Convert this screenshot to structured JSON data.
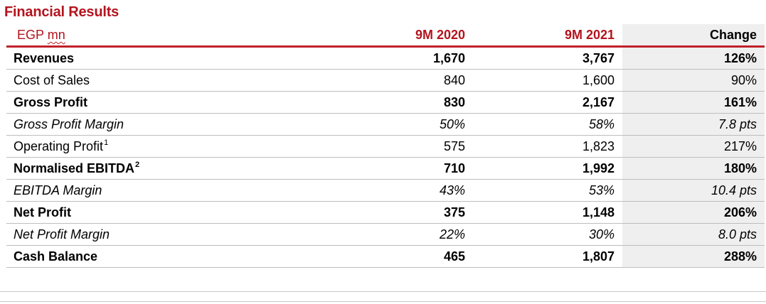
{
  "title": "Financial Results",
  "header": {
    "unit_prefix": "EGP ",
    "unit_suffix": "mn",
    "col_2020": "9M 2020",
    "col_2021": "9M 2021",
    "col_change": "Change"
  },
  "colors": {
    "accent_red": "#b3141e",
    "change_column_bg": "#efefef",
    "row_divider": "#bdbdbd"
  },
  "rows": [
    {
      "label": "Revenues",
      "sup": "",
      "v2020": "1,670",
      "v2021": "3,767",
      "change": "126%",
      "style": "bold"
    },
    {
      "label": "Cost of Sales",
      "sup": "",
      "v2020": "840",
      "v2021": "1,600",
      "change": "90%",
      "style": "normal"
    },
    {
      "label": "Gross Profit",
      "sup": "",
      "v2020": "830",
      "v2021": "2,167",
      "change": "161%",
      "style": "bold"
    },
    {
      "label": "Gross Profit Margin",
      "sup": "",
      "v2020": "50%",
      "v2021": "58%",
      "change": "7.8 pts",
      "style": "italic"
    },
    {
      "label": "Operating Profit",
      "sup": "1",
      "v2020": "575",
      "v2021": "1,823",
      "change": "217%",
      "style": "normal"
    },
    {
      "label": "Normalised EBITDA",
      "sup": "2",
      "v2020": "710",
      "v2021": "1,992",
      "change": "180%",
      "style": "bold"
    },
    {
      "label": "EBITDA Margin",
      "sup": "",
      "v2020": "43%",
      "v2021": "53%",
      "change": "10.4 pts",
      "style": "italic"
    },
    {
      "label": "Net Profit",
      "sup": "",
      "v2020": "375",
      "v2021": "1,148",
      "change": "206%",
      "style": "bold"
    },
    {
      "label": "Net Profit Margin",
      "sup": "",
      "v2020": "22%",
      "v2021": "30%",
      "change": "8.0 pts",
      "style": "italic"
    },
    {
      "label": "Cash Balance",
      "sup": "",
      "v2020": "465",
      "v2021": "1,807",
      "change": "288%",
      "style": "bold"
    }
  ]
}
